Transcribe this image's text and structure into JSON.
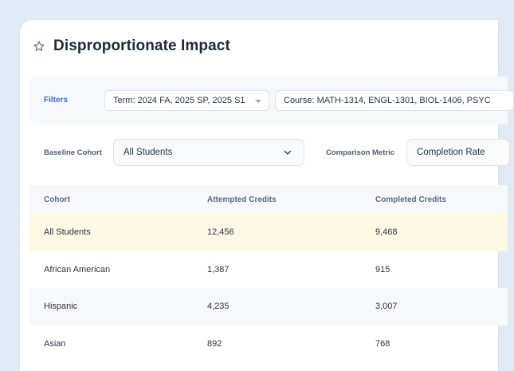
{
  "page": {
    "title": "Disproportionate Impact"
  },
  "filters": {
    "label": "Filters",
    "term": "Term: 2024 FA, 2025 SP, 2025 S1",
    "course": "Course: MATH-1314, ENGL-1301, BIOL-1406, PSYC"
  },
  "baseline": {
    "label": "Baseline Cohort",
    "value": "All Students"
  },
  "metric": {
    "label": "Comparison Metric",
    "value": "Completion Rate"
  },
  "table": {
    "headers": [
      "Cohort",
      "Attempted Credits",
      "Completed Credits"
    ],
    "rows": [
      {
        "cohort": "All Students",
        "attempted": "12,456",
        "completed": "9,468"
      },
      {
        "cohort": "African American",
        "attempted": "1,387",
        "completed": "915"
      },
      {
        "cohort": "Hispanic",
        "attempted": "4,235",
        "completed": "3,007"
      },
      {
        "cohort": "Asian",
        "attempted": "892",
        "completed": "768"
      }
    ]
  },
  "colors": {
    "accent": "#3f6ec6",
    "highlight_row": "#fdf8e3",
    "title": "#1d2a3a"
  },
  "icons": {
    "favorite": "star-icon",
    "dropdown": "chevron-down-icon",
    "caret": "caret-down-icon"
  }
}
